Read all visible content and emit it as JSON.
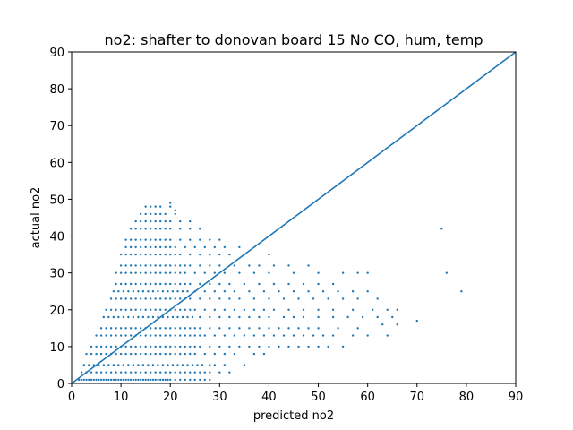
{
  "chart_data": {
    "type": "scatter",
    "title": "no2: shafter to donovan board 15 No CO, hum, temp",
    "xlabel": "predicted no2",
    "ylabel": "actual no2",
    "xlim": [
      0,
      90
    ],
    "ylim": [
      0,
      90
    ],
    "xticks": [
      0,
      10,
      20,
      30,
      40,
      50,
      60,
      70,
      80,
      90
    ],
    "yticks": [
      0,
      10,
      20,
      30,
      40,
      50,
      60,
      70,
      80,
      90
    ],
    "grid": false,
    "legend": "none",
    "colors": {
      "series": "#1f77b4",
      "axes": "#000000"
    },
    "series": [
      {
        "kind": "points",
        "x": [
          1.5,
          2.0,
          2.5,
          3.0,
          3.5,
          4.0,
          4.5,
          5.0,
          5.5,
          6.0,
          6.5,
          7.0,
          7.5,
          8.0,
          8.5,
          9.0,
          9.5,
          10.0,
          10.5,
          11.0,
          11.5,
          12.0,
          12.5,
          13.0,
          13.5,
          14.0,
          14.5,
          15.0,
          15.5,
          16.0,
          16.5,
          17.0,
          17.5,
          18.0,
          18.5,
          19.0,
          19.5,
          20.0,
          21.0,
          22.0,
          23.0,
          24.0,
          25.0,
          26.0,
          27.0,
          28.0,
          2.0,
          3.0,
          4.0,
          5.0,
          6.0,
          7.0,
          8.0,
          9.0,
          10.0,
          11.0,
          12.0,
          13.0,
          14.0,
          15.0,
          16.0,
          17.0,
          18.0,
          19.0,
          20.0,
          21.0,
          22.0,
          23.0,
          24.0,
          25.0,
          26.0,
          27.0,
          28.0,
          30.0,
          32.0,
          2.5,
          3.5,
          4.5,
          5.5,
          6.5,
          7.5,
          8.5,
          9.5,
          10.5,
          11.5,
          12.5,
          13.5,
          14.5,
          15.5,
          16.5,
          17.5,
          18.5,
          19.5,
          20.5,
          21.5,
          22.5,
          23.5,
          24.5,
          25.5,
          26.5,
          28.0,
          29.0,
          31.0,
          3.0,
          4.0,
          5.0,
          6.0,
          7.0,
          8.0,
          9.0,
          10.0,
          11.0,
          12.0,
          13.0,
          14.0,
          15.0,
          16.0,
          17.0,
          18.0,
          19.0,
          20.0,
          21.0,
          22.0,
          23.0,
          24.0,
          25.0,
          27.0,
          29.0,
          31.0,
          33.0,
          35.0,
          37.0,
          39.0,
          4.0,
          5.0,
          6.0,
          7.0,
          8.0,
          9.0,
          10.0,
          11.0,
          12.0,
          13.0,
          14.0,
          15.0,
          16.0,
          17.0,
          18.0,
          19.0,
          20.0,
          21.0,
          22.0,
          23.0,
          24.0,
          25.0,
          26.0,
          28.0,
          30.0,
          32.0,
          34.0,
          36.0,
          38.0,
          40.0,
          42.0,
          44.0,
          46.0,
          48.0,
          50.0,
          52.0,
          55.0,
          5.0,
          6.0,
          7.0,
          8.0,
          9.0,
          10.0,
          11.0,
          12.0,
          13.0,
          14.0,
          15.0,
          16.0,
          17.0,
          18.0,
          19.0,
          20.0,
          21.0,
          22.0,
          23.0,
          24.0,
          25.0,
          26.0,
          27.0,
          29.0,
          31.0,
          33.0,
          35.0,
          37.0,
          39.0,
          41.0,
          43.0,
          45.0,
          47.0,
          49.0,
          51.0,
          53.0,
          57.0,
          60.0,
          64.0,
          6.0,
          7.0,
          8.0,
          9.0,
          10.0,
          11.0,
          12.0,
          13.0,
          14.0,
          15.0,
          16.0,
          17.0,
          18.0,
          19.0,
          20.0,
          21.0,
          22.0,
          23.0,
          24.0,
          25.0,
          26.0,
          28.0,
          30.0,
          32.0,
          34.0,
          36.0,
          38.0,
          40.0,
          42.0,
          44.0,
          46.0,
          48.0,
          50.0,
          54.0,
          58.0,
          63.0,
          66.0,
          6.5,
          7.5,
          8.5,
          9.5,
          10.5,
          11.5,
          12.5,
          13.5,
          14.5,
          15.5,
          16.5,
          17.5,
          18.5,
          19.5,
          20.5,
          21.5,
          22.5,
          23.5,
          24.5,
          26.0,
          28.0,
          30.0,
          32.0,
          34.0,
          36.0,
          38.0,
          40.0,
          43.0,
          45.0,
          47.0,
          50.0,
          53.0,
          56.0,
          59.0,
          62.0,
          65.0,
          70.0,
          7.0,
          8.0,
          9.0,
          10.0,
          11.0,
          12.0,
          13.0,
          14.0,
          15.0,
          16.0,
          17.0,
          18.0,
          19.0,
          20.0,
          21.0,
          22.0,
          23.0,
          24.0,
          25.0,
          27.0,
          29.0,
          31.0,
          33.0,
          35.0,
          37.0,
          39.0,
          41.0,
          44.0,
          47.0,
          50.0,
          53.0,
          57.0,
          61.0,
          64.0,
          66.0,
          8.0,
          9.0,
          10.0,
          11.0,
          12.0,
          13.0,
          14.0,
          15.0,
          16.0,
          17.0,
          18.0,
          19.0,
          20.0,
          21.0,
          22.0,
          23.0,
          24.0,
          26.0,
          28.0,
          30.0,
          32.0,
          34.0,
          37.0,
          40.0,
          43.0,
          46.0,
          49.0,
          52.0,
          55.0,
          58.0,
          62.0,
          8.5,
          9.5,
          10.5,
          11.5,
          12.5,
          13.5,
          14.5,
          15.5,
          16.5,
          17.5,
          18.5,
          19.5,
          20.5,
          21.5,
          22.5,
          23.5,
          25.0,
          27.0,
          29.0,
          31.0,
          33.0,
          36.0,
          39.0,
          42.0,
          45.0,
          48.0,
          51.0,
          54.0,
          57.0,
          60.0,
          9.0,
          10.0,
          11.0,
          12.0,
          13.0,
          14.0,
          15.0,
          16.0,
          17.0,
          18.0,
          19.0,
          20.0,
          21.0,
          22.0,
          23.0,
          24.0,
          26.0,
          28.0,
          30.0,
          32.0,
          35.0,
          38.0,
          41.0,
          44.0,
          47.0,
          50.0,
          53.0,
          9.0,
          10.0,
          11.0,
          12.0,
          13.0,
          14.0,
          15.0,
          16.0,
          17.0,
          18.0,
          19.0,
          20.0,
          21.0,
          22.0,
          23.0,
          25.0,
          27.0,
          29.0,
          31.0,
          34.0,
          37.0,
          40.0,
          45.0,
          50.0,
          55.0,
          58.0,
          60.0,
          10.0,
          11.0,
          12.0,
          13.0,
          14.0,
          15.0,
          16.0,
          17.0,
          18.0,
          19.0,
          20.0,
          21.0,
          22.0,
          23.0,
          24.0,
          26.0,
          28.0,
          30.0,
          33.0,
          36.0,
          38.0,
          41.0,
          44.0,
          48.0,
          10.0,
          11.0,
          12.0,
          13.0,
          14.0,
          15.0,
          16.0,
          17.0,
          18.0,
          19.0,
          20.0,
          21.0,
          22.0,
          24.0,
          26.0,
          28.0,
          30.0,
          32.0,
          35.0,
          40.0,
          11.0,
          12.0,
          13.0,
          14.0,
          15.0,
          16.0,
          17.0,
          18.0,
          19.0,
          20.0,
          21.0,
          23.0,
          25.0,
          27.0,
          29.0,
          31.0,
          34.0,
          11.0,
          12.0,
          13.0,
          14.0,
          15.0,
          16.0,
          17.0,
          18.0,
          19.0,
          20.0,
          22.0,
          24.0,
          26.0,
          28.0,
          30.0,
          12.0,
          13.0,
          14.0,
          15.0,
          16.0,
          17.0,
          18.0,
          19.0,
          20.0,
          22.0,
          24.0,
          26.0,
          13.0,
          14.0,
          15.0,
          16.0,
          17.0,
          18.0,
          19.0,
          20.0,
          22.0,
          24.0,
          14.0,
          15.0,
          16.0,
          17.0,
          18.0,
          19.0,
          21.0,
          15.0,
          16.0,
          17.0,
          18.0,
          20.0,
          20.0,
          21.0,
          75.0,
          79.0,
          76.0
        ],
        "y": [
          1,
          1,
          1,
          1,
          1,
          1,
          1,
          1,
          1,
          1,
          1,
          1,
          1,
          1,
          1,
          1,
          1,
          1,
          1,
          1,
          1,
          1,
          1,
          1,
          1,
          1,
          1,
          1,
          1,
          1,
          1,
          1,
          1,
          1,
          1,
          1,
          1,
          1,
          1,
          1,
          1,
          1,
          1,
          1,
          1,
          1,
          3,
          3,
          3,
          3,
          3,
          3,
          3,
          3,
          3,
          3,
          3,
          3,
          3,
          3,
          3,
          3,
          3,
          3,
          3,
          3,
          3,
          3,
          3,
          3,
          3,
          3,
          3,
          3,
          3,
          5,
          5,
          5,
          5,
          5,
          5,
          5,
          5,
          5,
          5,
          5,
          5,
          5,
          5,
          5,
          5,
          5,
          5,
          5,
          5,
          5,
          5,
          5,
          5,
          5,
          5,
          5,
          5,
          8,
          8,
          8,
          8,
          8,
          8,
          8,
          8,
          8,
          8,
          8,
          8,
          8,
          8,
          8,
          8,
          8,
          8,
          8,
          8,
          8,
          8,
          8,
          8,
          8,
          8,
          8,
          5,
          8,
          8,
          10,
          10,
          10,
          10,
          10,
          10,
          10,
          10,
          10,
          10,
          10,
          10,
          10,
          10,
          10,
          10,
          10,
          10,
          10,
          10,
          10,
          10,
          10,
          10,
          10,
          10,
          10,
          10,
          10,
          10,
          10,
          10,
          10,
          10,
          10,
          10,
          10,
          13,
          13,
          13,
          13,
          13,
          13,
          13,
          13,
          13,
          13,
          13,
          13,
          13,
          13,
          13,
          13,
          13,
          13,
          13,
          13,
          13,
          13,
          13,
          13,
          13,
          13,
          13,
          13,
          13,
          13,
          13,
          13,
          13,
          13,
          13,
          13,
          13,
          13,
          13,
          15,
          15,
          15,
          15,
          15,
          15,
          15,
          15,
          15,
          15,
          15,
          15,
          15,
          15,
          15,
          15,
          15,
          15,
          15,
          15,
          15,
          15,
          15,
          15,
          15,
          15,
          15,
          15,
          15,
          15,
          15,
          15,
          15,
          15,
          15,
          16,
          16,
          18,
          18,
          18,
          18,
          18,
          18,
          18,
          18,
          18,
          18,
          18,
          18,
          18,
          18,
          18,
          18,
          18,
          18,
          18,
          18,
          18,
          18,
          18,
          18,
          18,
          18,
          18,
          18,
          18,
          18,
          18,
          18,
          18,
          18,
          18,
          18,
          17,
          20,
          20,
          20,
          20,
          20,
          20,
          20,
          20,
          20,
          20,
          20,
          20,
          20,
          20,
          20,
          20,
          20,
          20,
          20,
          20,
          20,
          20,
          20,
          20,
          20,
          20,
          20,
          20,
          20,
          20,
          20,
          20,
          20,
          20,
          20,
          23,
          23,
          23,
          23,
          23,
          23,
          23,
          23,
          23,
          23,
          23,
          23,
          23,
          23,
          23,
          23,
          23,
          23,
          23,
          23,
          23,
          23,
          23,
          23,
          23,
          23,
          23,
          23,
          23,
          23,
          23,
          25,
          25,
          25,
          25,
          25,
          25,
          25,
          25,
          25,
          25,
          25,
          25,
          25,
          25,
          25,
          25,
          25,
          25,
          25,
          25,
          25,
          25,
          25,
          25,
          25,
          25,
          25,
          25,
          25,
          25,
          27,
          27,
          27,
          27,
          27,
          27,
          27,
          27,
          27,
          27,
          27,
          27,
          27,
          27,
          27,
          27,
          27,
          27,
          27,
          27,
          27,
          27,
          27,
          27,
          27,
          27,
          27,
          30,
          30,
          30,
          30,
          30,
          30,
          30,
          30,
          30,
          30,
          30,
          30,
          30,
          30,
          30,
          30,
          30,
          30,
          30,
          30,
          30,
          30,
          30,
          30,
          30,
          30,
          30,
          32,
          32,
          32,
          32,
          32,
          32,
          32,
          32,
          32,
          32,
          32,
          32,
          32,
          32,
          32,
          32,
          32,
          32,
          32,
          32,
          32,
          32,
          32,
          32,
          35,
          35,
          35,
          35,
          35,
          35,
          35,
          35,
          35,
          35,
          35,
          35,
          35,
          35,
          35,
          35,
          35,
          35,
          35,
          35,
          37,
          37,
          37,
          37,
          37,
          37,
          37,
          37,
          37,
          37,
          37,
          37,
          37,
          37,
          37,
          37,
          37,
          39,
          39,
          39,
          39,
          39,
          39,
          39,
          39,
          39,
          39,
          39,
          39,
          39,
          39,
          39,
          42,
          42,
          42,
          42,
          42,
          42,
          42,
          42,
          42,
          42,
          42,
          42,
          44,
          44,
          44,
          44,
          44,
          44,
          44,
          44,
          44,
          44,
          46,
          46,
          46,
          46,
          46,
          46,
          46,
          48,
          48,
          48,
          48,
          48,
          49,
          47,
          42,
          25,
          30
        ]
      },
      {
        "kind": "line",
        "x": [
          0,
          90
        ],
        "y": [
          0,
          90
        ]
      }
    ]
  }
}
